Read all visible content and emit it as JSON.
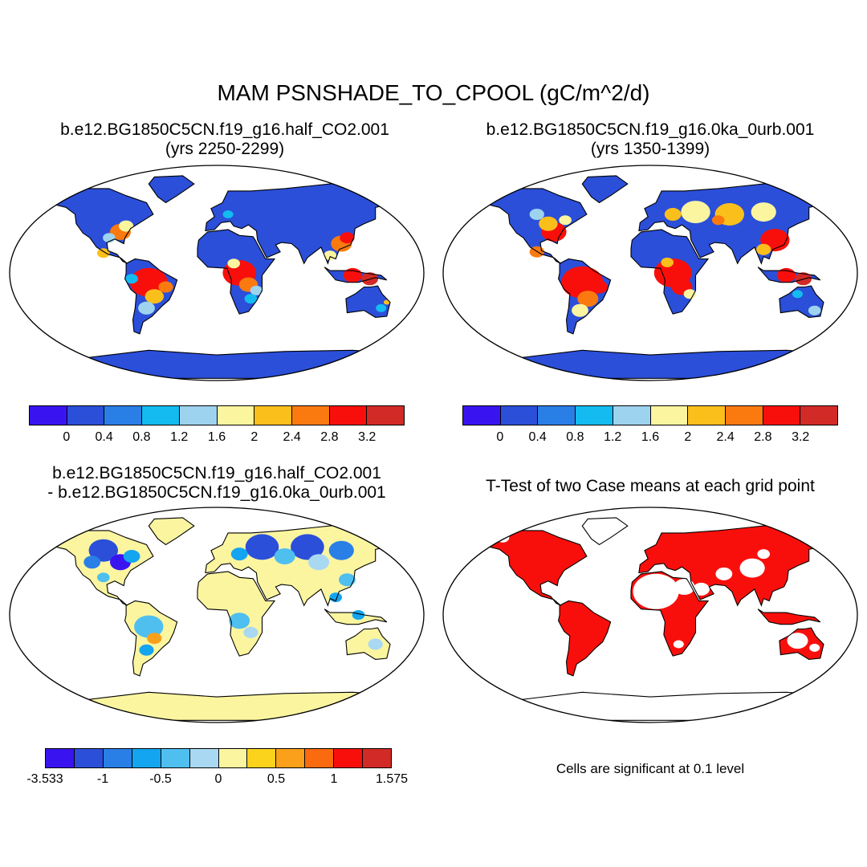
{
  "title": "MAM PSNSHADE_TO_CPOOL (gC/m^2/d)",
  "panels": [
    {
      "id": "p1",
      "title_line1": "b.e12.BG1850C5CN.f19_g16.half_CO2.001",
      "title_line2": "(yrs 2250-2299)",
      "field": "absolute"
    },
    {
      "id": "p2",
      "title_line1": "b.e12.BG1850C5CN.f19_g16.0ka_0urb.001",
      "title_line2": "(yrs 1350-1399)",
      "field": "absolute"
    },
    {
      "id": "p3",
      "title_line1": "b.e12.BG1850C5CN.f19_g16.half_CO2.001",
      "title_line2": "- b.e12.BG1850C5CN.f19_g16.0ka_0urb.001",
      "field": "difference"
    },
    {
      "id": "p4",
      "title_line1": "T-Test of two Case means at each grid point",
      "title_line2": "",
      "field": "significance"
    }
  ],
  "colorbars": {
    "absolute": {
      "colors": [
        "#3a14f0",
        "#2b4fd9",
        "#2a7fe6",
        "#14bbf0",
        "#9ed3ef",
        "#fbf5a0",
        "#fbbf1c",
        "#fa7a0f",
        "#f80f0c",
        "#d22a26"
      ],
      "ticks": [
        "0",
        "0.4",
        "0.8",
        "1.2",
        "1.6",
        "2",
        "2.4",
        "2.8",
        "3.2"
      ]
    },
    "difference": {
      "colors": [
        "#3a14f0",
        "#2b4fd9",
        "#2a7fe6",
        "#14a5f0",
        "#4fbff0",
        "#a9d8f2",
        "#fbf5a0",
        "#fbd21c",
        "#fba01a",
        "#fa6a0f",
        "#f80f0c",
        "#d22a26"
      ],
      "ticks": [
        "-3.533",
        "-1",
        "-0.5",
        "0",
        "0.5",
        "1",
        "1.575"
      ]
    }
  },
  "significance": {
    "note": "Cells are significant at 0.1 level",
    "color": "#f80f0c"
  }
}
